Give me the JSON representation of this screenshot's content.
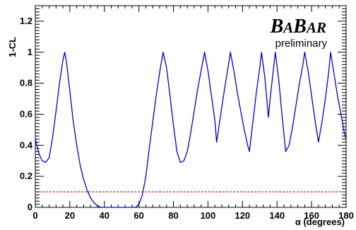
{
  "chart_data": {
    "type": "line",
    "title": "",
    "xlabel": "α (degrees)",
    "ylabel": "1-CL",
    "xlim": [
      0,
      180
    ],
    "ylim": [
      0,
      1.3
    ],
    "x_ticks": [
      0,
      20,
      40,
      60,
      80,
      100,
      120,
      140,
      160,
      180
    ],
    "y_ticks": [
      0,
      0.2,
      0.4,
      0.6,
      0.8,
      1,
      1.2
    ],
    "x_tick_labels": [
      "0",
      "20",
      "40",
      "60",
      "80",
      "100",
      "120",
      "140",
      "160",
      "180"
    ],
    "y_tick_labels": [
      "0",
      "0.2",
      "0.4",
      "0.6",
      "0.8",
      "1",
      "1.2"
    ],
    "grid": false,
    "logo": {
      "ba1": "B",
      "ba2": "A",
      "bar1": "B",
      "bar2": "AR"
    },
    "subtitle": "preliminary",
    "reference_line": {
      "y": 0.1,
      "style": "dashed",
      "color": "#cc0000"
    },
    "series": [
      {
        "color": "#0000cc",
        "points": [
          [
            0,
            0.44
          ],
          [
            2,
            0.35
          ],
          [
            4,
            0.3
          ],
          [
            6,
            0.29
          ],
          [
            8,
            0.32
          ],
          [
            10,
            0.45
          ],
          [
            12,
            0.62
          ],
          [
            14,
            0.8
          ],
          [
            16,
            0.95
          ],
          [
            17,
            1.0
          ],
          [
            18,
            0.94
          ],
          [
            20,
            0.75
          ],
          [
            22,
            0.55
          ],
          [
            24,
            0.4
          ],
          [
            26,
            0.27
          ],
          [
            28,
            0.18
          ],
          [
            30,
            0.11
          ],
          [
            32,
            0.06
          ],
          [
            34,
            0.03
          ],
          [
            36,
            0.01
          ],
          [
            38,
            0.0
          ],
          [
            40,
            0.0
          ],
          [
            45,
            0.0
          ],
          [
            50,
            0.0
          ],
          [
            55,
            0.0
          ],
          [
            58,
            0.0
          ],
          [
            60,
            0.02
          ],
          [
            62,
            0.08
          ],
          [
            64,
            0.2
          ],
          [
            66,
            0.38
          ],
          [
            68,
            0.55
          ],
          [
            70,
            0.72
          ],
          [
            72,
            0.87
          ],
          [
            74,
            1.0
          ],
          [
            76,
            0.9
          ],
          [
            78,
            0.72
          ],
          [
            80,
            0.53
          ],
          [
            82,
            0.36
          ],
          [
            84,
            0.29
          ],
          [
            86,
            0.3
          ],
          [
            88,
            0.36
          ],
          [
            90,
            0.48
          ],
          [
            92,
            0.62
          ],
          [
            94,
            0.76
          ],
          [
            96,
            0.88
          ],
          [
            98,
            1.0
          ],
          [
            100,
            0.88
          ],
          [
            102,
            0.72
          ],
          [
            104,
            0.56
          ],
          [
            105,
            0.42
          ],
          [
            107,
            0.57
          ],
          [
            109,
            0.72
          ],
          [
            111,
            0.86
          ],
          [
            113,
            1.0
          ],
          [
            115,
            0.88
          ],
          [
            117,
            0.74
          ],
          [
            119,
            0.62
          ],
          [
            121,
            0.5
          ],
          [
            123,
            0.4
          ],
          [
            124,
            0.36
          ],
          [
            126,
            0.55
          ],
          [
            128,
            0.74
          ],
          [
            130,
            0.9
          ],
          [
            131,
            1.0
          ],
          [
            133,
            0.83
          ],
          [
            135,
            0.58
          ],
          [
            136,
            0.7
          ],
          [
            138,
            0.9
          ],
          [
            139,
            1.0
          ],
          [
            141,
            0.82
          ],
          [
            143,
            0.58
          ],
          [
            145,
            0.36
          ],
          [
            147,
            0.4
          ],
          [
            149,
            0.52
          ],
          [
            151,
            0.66
          ],
          [
            153,
            0.8
          ],
          [
            155,
            0.92
          ],
          [
            156,
            1.0
          ],
          [
            158,
            0.88
          ],
          [
            160,
            0.72
          ],
          [
            162,
            0.56
          ],
          [
            164,
            0.42
          ],
          [
            166,
            0.55
          ],
          [
            168,
            0.7
          ],
          [
            170,
            0.88
          ],
          [
            171,
            1.0
          ],
          [
            173,
            0.86
          ],
          [
            175,
            0.72
          ],
          [
            177,
            0.6
          ],
          [
            179,
            0.48
          ],
          [
            180,
            0.44
          ]
        ]
      }
    ]
  }
}
